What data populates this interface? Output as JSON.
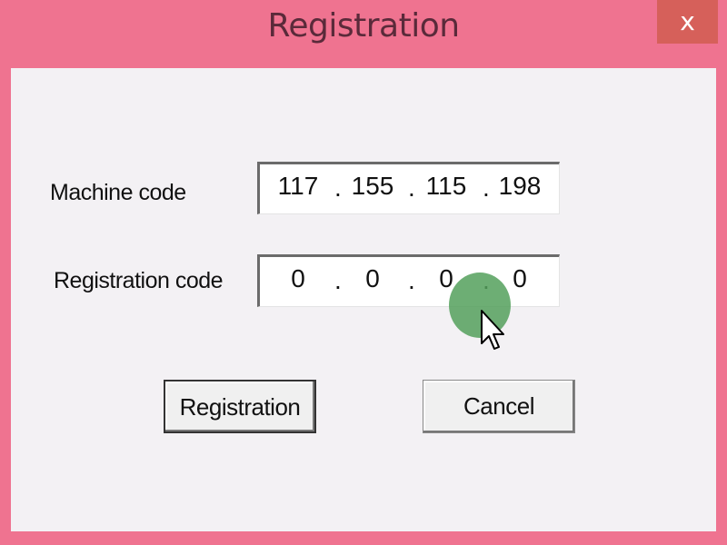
{
  "window": {
    "title": "Registration",
    "close_label": "x",
    "accent_color": "#ef7390",
    "close_color": "#d6605a"
  },
  "form": {
    "machine_code_label": "Machine code",
    "machine_code": [
      "117",
      "155",
      "115",
      "198"
    ],
    "registration_code_label": "Registration code",
    "registration_code": [
      "0",
      "0",
      "0",
      "0"
    ],
    "separator": "."
  },
  "buttons": {
    "register": "Registration",
    "cancel": "Cancel"
  },
  "cursor": {
    "icon": "arrow-pointer-icon",
    "highlight_color": "#54a05c"
  }
}
